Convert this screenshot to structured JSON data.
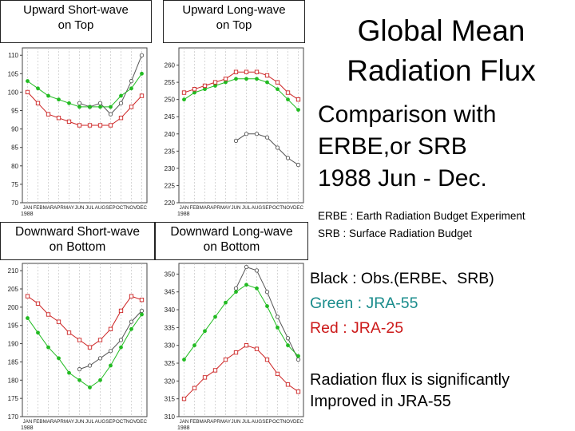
{
  "title": {
    "line1": "Global Mean",
    "line2": "Radiation Flux"
  },
  "comparison": {
    "line1": "Comparison with",
    "line2": "ERBE,or SRB",
    "line3": "1988 Jun - Dec."
  },
  "abbreviations": {
    "erbe": "ERBE : Earth Radiation Budget Experiment",
    "srb": "SRB : Surface Radiation Budget"
  },
  "legend": {
    "black": {
      "text": "Black : Obs.(ERBE、SRB)",
      "color": "#000000"
    },
    "green": {
      "text": "Green : JRA-55",
      "color": "#1a8c8c"
    },
    "red": {
      "text": "Red : JRA-25",
      "color": "#cc1a1a"
    }
  },
  "note": {
    "line1": "Radiation flux is significantly",
    "line2": "Improved in JRA-55"
  },
  "panel_labels": [
    {
      "line1": "Upward Short-wave",
      "line2": "on Top"
    },
    {
      "line1": "Upward Long-wave",
      "line2": "on Top"
    },
    {
      "line1": "Downward Short-wave",
      "line2": "on Bottom"
    },
    {
      "line1": "Downward Long-wave",
      "line2": "on Bottom"
    }
  ],
  "series_colors": {
    "obs": "#555555",
    "jra55": "#22bb22",
    "jra25": "#cc2222"
  },
  "chart_data": [
    {
      "type": "line",
      "title": "Upward Short-wave on Top",
      "categories": [
        "JAN",
        "FEB",
        "MAR",
        "APR",
        "MAY",
        "JUN",
        "JUL",
        "AUG",
        "SEP",
        "OCT",
        "NOV",
        "DEC"
      ],
      "year_label": "1988",
      "ylim": [
        70,
        112
      ],
      "yticks": [
        70,
        75,
        80,
        85,
        90,
        95,
        100,
        105,
        110
      ],
      "series": [
        {
          "key": "obs",
          "values": [
            null,
            null,
            null,
            null,
            null,
            97,
            96,
            97,
            94,
            97,
            103,
            110
          ]
        },
        {
          "key": "jra55",
          "values": [
            103,
            101,
            99,
            98,
            97,
            96,
            96,
            96,
            96,
            99,
            101,
            105
          ]
        },
        {
          "key": "jra25",
          "values": [
            100,
            97,
            94,
            93,
            92,
            91,
            91,
            91,
            91,
            93,
            96,
            99
          ]
        }
      ]
    },
    {
      "type": "line",
      "title": "Upward Long-wave on Top",
      "categories": [
        "JAN",
        "FEB",
        "MAR",
        "APR",
        "MAY",
        "JUN",
        "JUL",
        "AUG",
        "SEP",
        "OCT",
        "NOV",
        "DEC"
      ],
      "year_label": "1988",
      "ylim": [
        220,
        265
      ],
      "yticks": [
        220,
        225,
        230,
        235,
        240,
        245,
        250,
        255,
        260
      ],
      "series": [
        {
          "key": "obs",
          "values": [
            null,
            null,
            null,
            null,
            null,
            238,
            240,
            240,
            239,
            236,
            233,
            231
          ]
        },
        {
          "key": "jra55",
          "values": [
            250,
            252,
            253,
            254,
            255,
            256,
            256,
            256,
            255,
            253,
            250,
            247
          ]
        },
        {
          "key": "jra25",
          "values": [
            252,
            253,
            254,
            255,
            256,
            258,
            258,
            258,
            257,
            255,
            252,
            250
          ]
        }
      ]
    },
    {
      "type": "line",
      "title": "Downward Short-wave on Bottom",
      "categories": [
        "JAN",
        "FEB",
        "MAR",
        "APR",
        "MAY",
        "JUN",
        "JUL",
        "AUG",
        "SEP",
        "OCT",
        "NOV",
        "DEC"
      ],
      "year_label": "1988",
      "ylim": [
        170,
        212
      ],
      "yticks": [
        170,
        175,
        180,
        185,
        190,
        195,
        200,
        205,
        210
      ],
      "series": [
        {
          "key": "obs",
          "values": [
            null,
            null,
            null,
            null,
            null,
            183,
            184,
            186,
            188,
            191,
            196,
            199
          ]
        },
        {
          "key": "jra55",
          "values": [
            197,
            193,
            189,
            186,
            182,
            180,
            178,
            180,
            184,
            189,
            194,
            198
          ]
        },
        {
          "key": "jra25",
          "values": [
            203,
            201,
            198,
            196,
            193,
            191,
            189,
            191,
            194,
            199,
            203,
            202
          ]
        }
      ]
    },
    {
      "type": "line",
      "title": "Downward Long-wave on Bottom",
      "categories": [
        "JAN",
        "FEB",
        "MAR",
        "APR",
        "MAY",
        "JUN",
        "JUL",
        "AUG",
        "SEP",
        "OCT",
        "NOV",
        "DEC"
      ],
      "year_label": "1988",
      "ylim": [
        310,
        353
      ],
      "yticks": [
        310,
        315,
        320,
        325,
        330,
        335,
        340,
        345,
        350
      ],
      "series": [
        {
          "key": "obs",
          "values": [
            null,
            null,
            null,
            null,
            null,
            346,
            352,
            351,
            345,
            338,
            332,
            326
          ]
        },
        {
          "key": "jra55",
          "values": [
            326,
            330,
            334,
            338,
            342,
            345,
            347,
            346,
            341,
            335,
            330,
            327
          ]
        },
        {
          "key": "jra25",
          "values": [
            315,
            318,
            321,
            323,
            326,
            328,
            330,
            329,
            326,
            322,
            319,
            317
          ]
        }
      ]
    }
  ]
}
